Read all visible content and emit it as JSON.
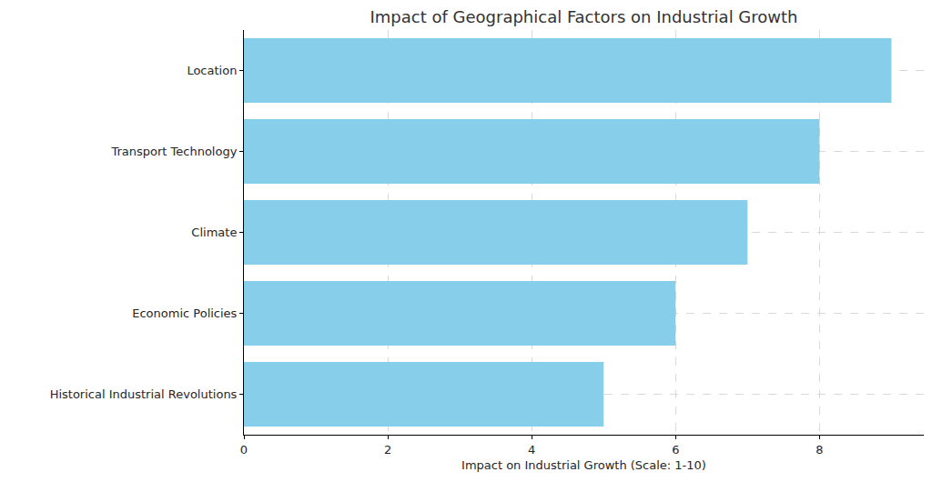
{
  "chart_data": {
    "type": "bar",
    "orientation": "horizontal",
    "title": "Impact of Geographical Factors on Industrial Growth",
    "x_label": "Impact on Industrial Growth (Scale: 1-10)",
    "categories": [
      "Location",
      "Transport Technology",
      "Climate",
      "Economic Policies",
      "Historical Industrial Revolutions"
    ],
    "values": [
      9,
      8,
      7,
      6,
      5
    ],
    "color": "#87ceeb",
    "xlim": [
      0,
      9.45
    ],
    "xticks": [
      0,
      2,
      4,
      6,
      8
    ],
    "grid": true
  }
}
